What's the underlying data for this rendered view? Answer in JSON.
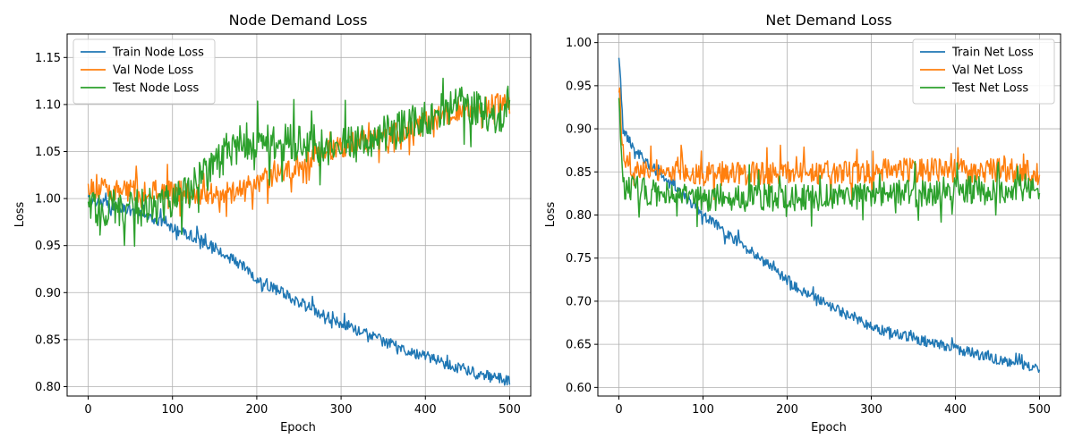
{
  "colors": {
    "train": "#1f77b4",
    "val": "#ff7f0e",
    "test": "#2ca02c",
    "grid": "#b0b0b0",
    "axis": "#000000"
  },
  "chart_data": [
    {
      "type": "line",
      "title": "Node Demand Loss",
      "xlabel": "Epoch",
      "ylabel": "Loss",
      "xlim": [
        -25,
        525
      ],
      "ylim": [
        0.79,
        1.175
      ],
      "xticks": [
        0,
        100,
        200,
        300,
        400,
        500
      ],
      "xtick_labels": [
        "0",
        "100",
        "200",
        "300",
        "400",
        "500"
      ],
      "yticks": [
        0.8,
        0.85,
        0.9,
        0.95,
        1.0,
        1.05,
        1.1,
        1.15
      ],
      "ytick_labels": [
        "0.80",
        "0.85",
        "0.90",
        "0.95",
        "1.00",
        "1.05",
        "1.10",
        "1.15"
      ],
      "grid": true,
      "legend_position": "upper-left",
      "legend": [
        "Train Node Loss",
        "Val Node Loss",
        "Test Node Loss"
      ],
      "series": [
        {
          "name": "Train Node Loss",
          "color_key": "train",
          "x": [
            0,
            20,
            40,
            60,
            80,
            100,
            120,
            140,
            160,
            180,
            200,
            220,
            240,
            260,
            280,
            300,
            320,
            340,
            360,
            380,
            400,
            420,
            440,
            460,
            480,
            500
          ],
          "values": [
            1.0,
            0.995,
            0.99,
            0.985,
            0.978,
            0.97,
            0.962,
            0.952,
            0.942,
            0.93,
            0.915,
            0.905,
            0.895,
            0.885,
            0.875,
            0.868,
            0.86,
            0.852,
            0.845,
            0.838,
            0.832,
            0.826,
            0.82,
            0.814,
            0.81,
            0.806
          ],
          "noise": 0.006
        },
        {
          "name": "Val Node Loss",
          "color_key": "val",
          "x": [
            0,
            20,
            40,
            60,
            80,
            100,
            120,
            140,
            160,
            180,
            200,
            220,
            240,
            260,
            280,
            300,
            320,
            340,
            360,
            380,
            400,
            420,
            440,
            460,
            480,
            500
          ],
          "values": [
            1.012,
            1.01,
            1.008,
            1.008,
            1.008,
            1.008,
            1.006,
            1.005,
            1.005,
            1.008,
            1.018,
            1.025,
            1.032,
            1.04,
            1.048,
            1.055,
            1.06,
            1.062,
            1.068,
            1.072,
            1.08,
            1.088,
            1.09,
            1.095,
            1.1,
            1.1
          ],
          "noise": 0.012
        },
        {
          "name": "Test Node Loss",
          "color_key": "test",
          "x": [
            0,
            20,
            40,
            60,
            80,
            100,
            120,
            140,
            160,
            180,
            200,
            220,
            240,
            260,
            280,
            300,
            320,
            340,
            360,
            380,
            400,
            420,
            440,
            460,
            480,
            500
          ],
          "values": [
            0.99,
            0.99,
            0.99,
            0.99,
            0.992,
            0.998,
            1.01,
            1.025,
            1.045,
            1.055,
            1.06,
            1.06,
            1.06,
            1.058,
            1.055,
            1.058,
            1.06,
            1.065,
            1.07,
            1.078,
            1.085,
            1.095,
            1.1,
            1.095,
            1.09,
            1.085
          ],
          "noise": 0.02
        }
      ]
    },
    {
      "type": "line",
      "title": "Net Demand Loss",
      "xlabel": "Epoch",
      "ylabel": "Loss",
      "xlim": [
        -25,
        525
      ],
      "ylim": [
        0.59,
        1.01
      ],
      "xticks": [
        0,
        100,
        200,
        300,
        400,
        500
      ],
      "xtick_labels": [
        "0",
        "100",
        "200",
        "300",
        "400",
        "500"
      ],
      "yticks": [
        0.6,
        0.65,
        0.7,
        0.75,
        0.8,
        0.85,
        0.9,
        0.95,
        1.0
      ],
      "ytick_labels": [
        "0.60",
        "0.65",
        "0.70",
        "0.75",
        "0.80",
        "0.85",
        "0.90",
        "0.95",
        "1.00"
      ],
      "grid": true,
      "legend_position": "upper-right",
      "legend": [
        "Train Net Loss",
        "Val Net Loss",
        "Test Net Loss"
      ],
      "series": [
        {
          "name": "Train Net Loss",
          "color_key": "train",
          "x": [
            0,
            5,
            20,
            40,
            60,
            80,
            100,
            120,
            140,
            160,
            180,
            200,
            220,
            240,
            260,
            280,
            300,
            320,
            340,
            360,
            380,
            400,
            420,
            440,
            460,
            480,
            500
          ],
          "values": [
            0.988,
            0.9,
            0.875,
            0.855,
            0.84,
            0.82,
            0.8,
            0.785,
            0.77,
            0.755,
            0.74,
            0.725,
            0.71,
            0.7,
            0.69,
            0.68,
            0.67,
            0.665,
            0.66,
            0.655,
            0.65,
            0.645,
            0.64,
            0.635,
            0.63,
            0.625,
            0.62
          ],
          "noise": 0.006
        },
        {
          "name": "Val Net Loss",
          "color_key": "val",
          "x": [
            0,
            5,
            20,
            40,
            60,
            80,
            100,
            120,
            140,
            160,
            180,
            200,
            220,
            240,
            260,
            280,
            300,
            320,
            340,
            360,
            380,
            400,
            420,
            440,
            460,
            480,
            500
          ],
          "values": [
            0.955,
            0.86,
            0.858,
            0.855,
            0.852,
            0.85,
            0.848,
            0.848,
            0.848,
            0.848,
            0.848,
            0.848,
            0.848,
            0.85,
            0.85,
            0.85,
            0.85,
            0.852,
            0.852,
            0.852,
            0.852,
            0.852,
            0.852,
            0.852,
            0.852,
            0.85,
            0.848
          ],
          "noise": 0.014
        },
        {
          "name": "Test Net Loss",
          "color_key": "test",
          "x": [
            0,
            5,
            20,
            40,
            60,
            80,
            100,
            120,
            140,
            160,
            180,
            200,
            220,
            240,
            260,
            280,
            300,
            320,
            340,
            360,
            380,
            400,
            420,
            440,
            460,
            480,
            500
          ],
          "values": [
            0.95,
            0.835,
            0.83,
            0.825,
            0.822,
            0.82,
            0.82,
            0.82,
            0.82,
            0.82,
            0.82,
            0.82,
            0.82,
            0.82,
            0.82,
            0.82,
            0.822,
            0.825,
            0.825,
            0.825,
            0.828,
            0.828,
            0.83,
            0.83,
            0.83,
            0.832,
            0.83
          ],
          "noise": 0.016
        }
      ]
    }
  ]
}
